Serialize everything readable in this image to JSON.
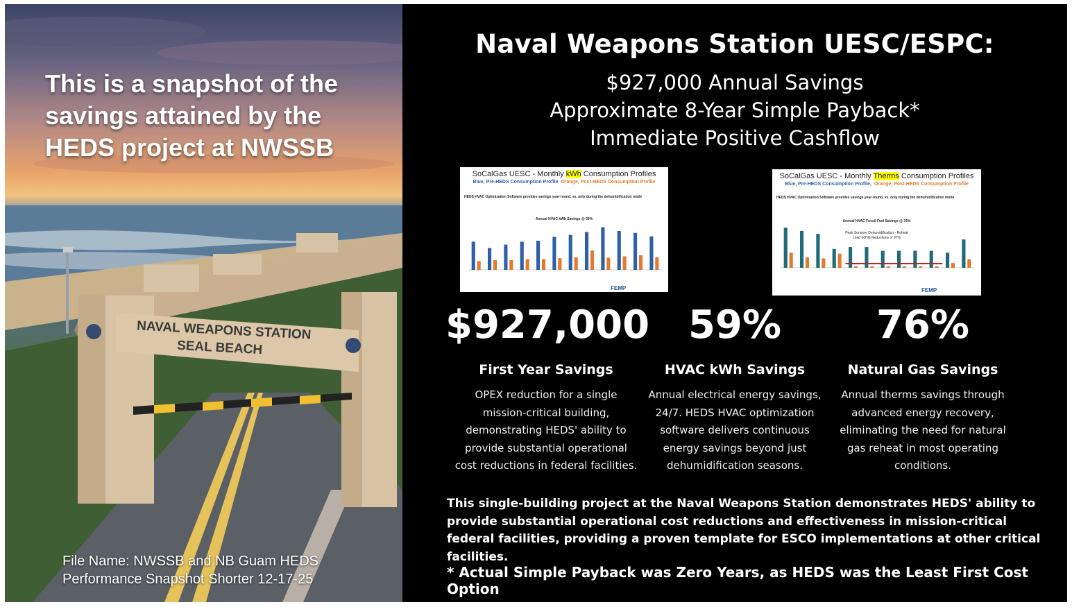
{
  "left_panel": {
    "title": "This is a snapshot of the savings attained by the HEDS project at NWSSB",
    "gate_sign_line1": "NAVAL WEAPONS STATION",
    "gate_sign_line2": "SEAL BEACH",
    "file_name": "File Name: NWSSB and NB Guam HEDS Performance Snapshot Shorter 12-17-25"
  },
  "right_panel": {
    "heading": "Naval Weapons Station UESC/ESPC:",
    "subheadings": [
      "$927,000 Annual Savings",
      "Approximate 8-Year Simple Payback*",
      "Immediate Positive Cashflow"
    ],
    "thumb_kwh": {
      "title_pre": "SoCalGas UESC - Monthly ",
      "title_hl": "kWh",
      "title_post": " Consumption Profiles",
      "subtitle_blue": "Blue, Pre-HEDS Consumption Profile",
      "subtitle_orange": "Orange, Post-HEDS Consumption Profile",
      "note": "HEDS HVAC Optimization Software provides savings year-round, vs. only during the dehumidification mode",
      "inner_title": "Annual HVAC kWh Savings @ 59%",
      "logo": "FEMP"
    },
    "thumb_therms": {
      "title_pre": "SoCalGas UESC - Monthly ",
      "title_hl": "Therms",
      "title_post": " Consumption Profiles",
      "subtitle_blue": "Blue, Pre-HEDS Consumption Profile,",
      "subtitle_orange": "Orange, Post-HEDS Consumption Profile",
      "note": "HEDS HVAC Optimization Software provides savings year-round, vs. only during the dehumidification mode",
      "inner_title": "Annual HVAC Fossil Fuel Savings @ 76%",
      "inner_note1": "Peak Summer Dehumidification - Reheat",
      "inner_note2": "Load 60HG Reductions of 97%",
      "logo": "FEMP"
    },
    "stats": [
      {
        "value": "$927,000",
        "label": "First Year Savings",
        "description": [
          "OPEX reduction for a single",
          "mission-critical building,",
          "demonstrating HEDS' ability to",
          "provide substantial operational",
          "cost reductions in federal facilities."
        ]
      },
      {
        "value": "59%",
        "label": "HVAC kWh Savings",
        "description": [
          "Annual electrical energy savings,",
          "24/7. HEDS HVAC optimization",
          "software delivers continuous",
          "energy savings beyond just",
          "dehumidification seasons."
        ]
      },
      {
        "value": "76%",
        "label": "Natural Gas Savings",
        "description": [
          "Annual therms savings through",
          "advanced energy recovery,",
          "eliminating the need for natural",
          "gas reheat in most operating",
          "conditions."
        ]
      }
    ],
    "summary": "This single-building project at the Naval Weapons Station demonstrates HEDS' ability to provide substantial operational cost reductions and effectiveness in mission-critical federal facilities, providing a proven template for ESCO implementations at other critical facilities.",
    "footnote": "* Actual Simple Payback was Zero Years, as HEDS was the Least First Cost Option"
  },
  "colors": {
    "background_dark": "#000000",
    "text": "#ffffff",
    "series_pre": "#2f5fa8",
    "series_post": "#e07b30",
    "series_pre_therms": "#1f6b7a",
    "highlight": "#ffff00"
  },
  "chart_data": [
    {
      "type": "bar",
      "title": "Annual HVAC kWh Savings @ 59%",
      "series": [
        {
          "name": "Blue, Pre-HEDS Consumption Profile",
          "values": [
            58,
            45,
            52,
            58,
            60,
            68,
            72,
            78,
            88,
            80,
            76,
            69
          ]
        },
        {
          "name": "Orange, Post-HEDS Consumption Profile",
          "values": [
            18,
            20,
            20,
            22,
            22,
            24,
            26,
            40,
            25,
            28,
            30,
            26
          ]
        }
      ]
    },
    {
      "type": "bar",
      "title": "Annual HVAC Fossil Fuel Savings @ 76%",
      "series": [
        {
          "name": "Blue, Pre-HEDS Consumption Profile,",
          "values": [
            85,
            78,
            72,
            40,
            44,
            44,
            36,
            36,
            36,
            36,
            32,
            60
          ]
        },
        {
          "name": "Orange, Post-HEDS Consumption Profile",
          "values": [
            32,
            22,
            20,
            30,
            3,
            3,
            3,
            3,
            3,
            3,
            10,
            18
          ]
        }
      ]
    }
  ]
}
